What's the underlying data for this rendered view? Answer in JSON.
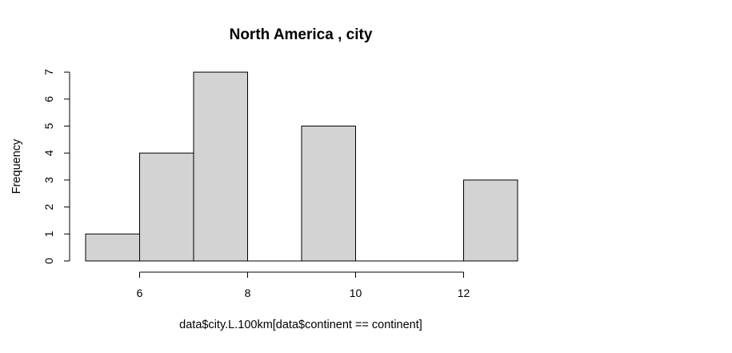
{
  "chart_data": {
    "type": "bar",
    "title": "North America , city",
    "xlabel": "data$city.L.100km[data$continent == continent]",
    "ylabel": "Frequency",
    "bins": [
      {
        "from": 5,
        "to": 6,
        "count": 1
      },
      {
        "from": 6,
        "to": 7,
        "count": 4
      },
      {
        "from": 7,
        "to": 8,
        "count": 7
      },
      {
        "from": 8,
        "to": 9,
        "count": 0
      },
      {
        "from": 9,
        "to": 10,
        "count": 5
      },
      {
        "from": 10,
        "to": 11,
        "count": 0
      },
      {
        "from": 11,
        "to": 12,
        "count": 0
      },
      {
        "from": 12,
        "to": 13,
        "count": 3
      }
    ],
    "x_ticks": [
      6,
      8,
      10,
      12
    ],
    "y_ticks": [
      0,
      1,
      2,
      3,
      4,
      5,
      6,
      7
    ],
    "xlim": [
      5,
      13
    ],
    "ylim": [
      0,
      7
    ],
    "grid": false,
    "bar_color": "#d3d3d3"
  }
}
